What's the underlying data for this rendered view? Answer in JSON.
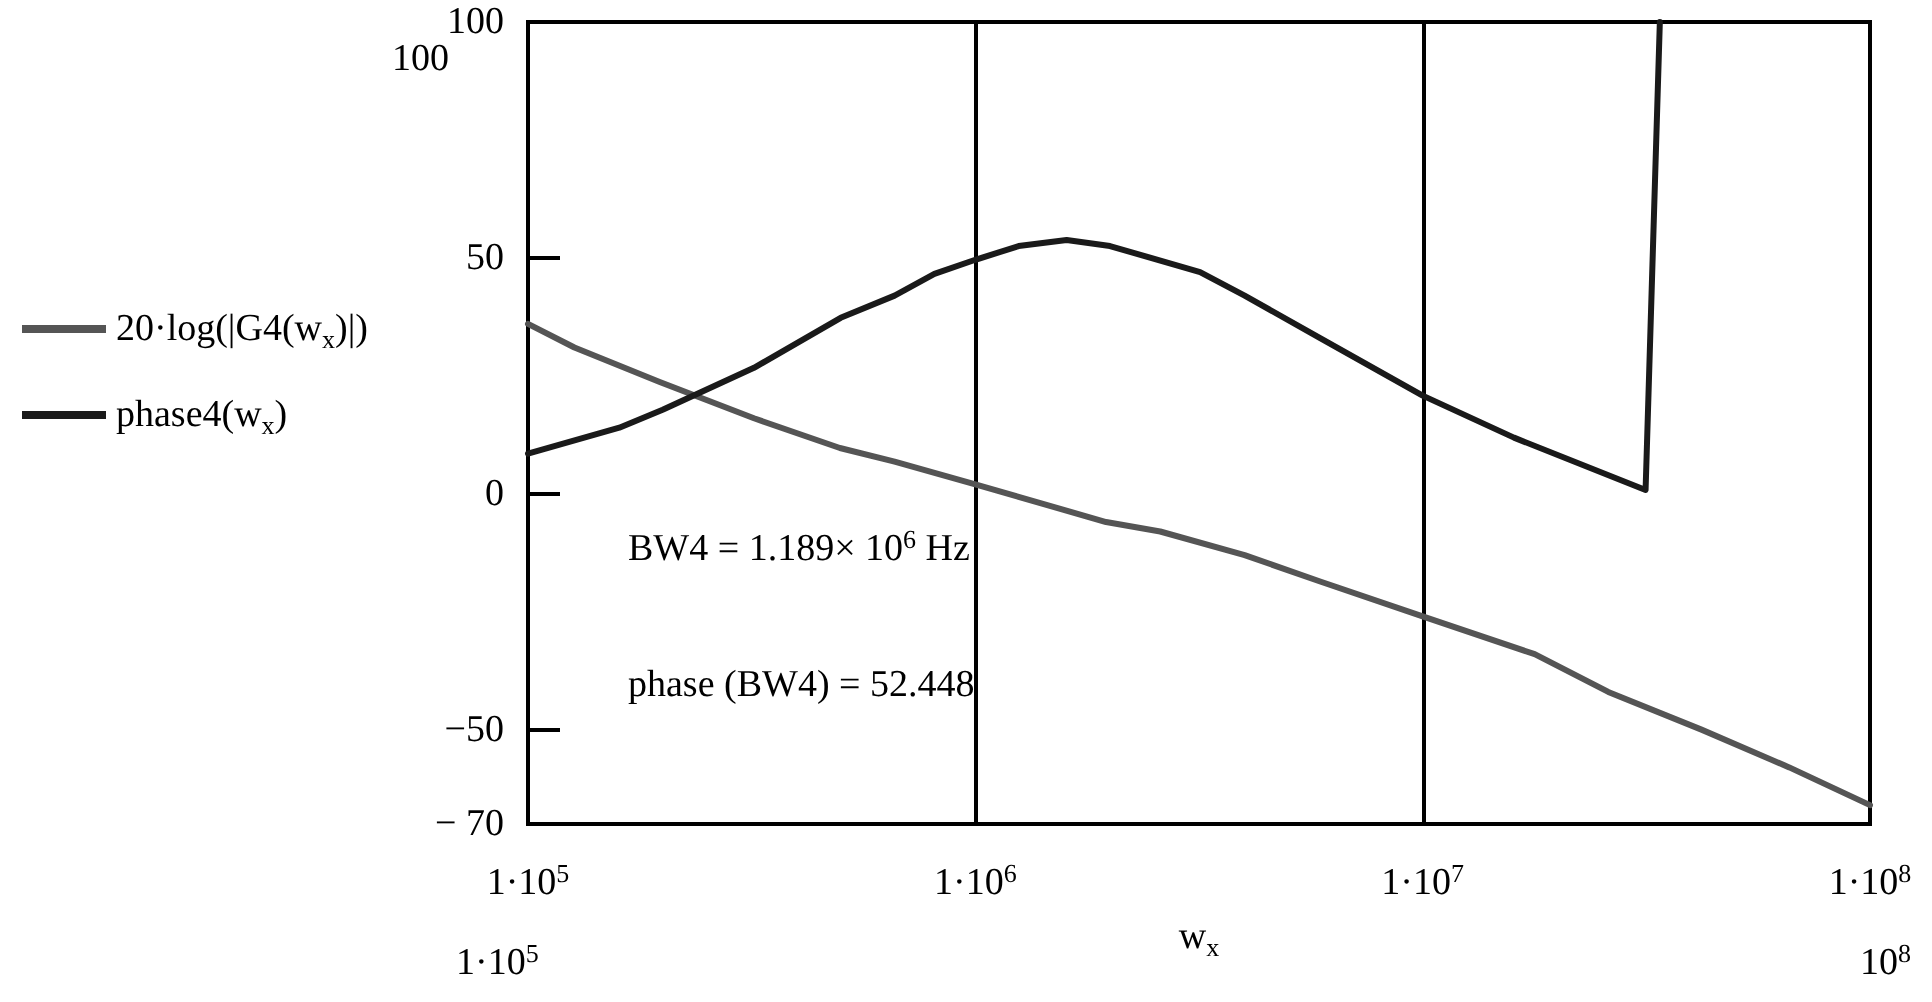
{
  "chart_data": {
    "type": "line",
    "xlabel": "w$_{x}$",
    "log": "x",
    "grid": "x",
    "legend": "left",
    "marker": "none",
    "line_style": "solid",
    "xlim": [
      100000,
      100000000
    ],
    "xticks": [
      {
        "value": 100000,
        "label": "1·10$^{5}$"
      },
      {
        "value": 1000000,
        "label": "1·10$^{6}$"
      },
      {
        "value": 10000000,
        "label": "1·10$^{7}$"
      },
      {
        "value": 100000000,
        "label": "1·10$^{8}$"
      }
    ],
    "ylim": [
      -70,
      100
    ],
    "yticks": [
      {
        "value": -70,
        "label": "− 70"
      },
      {
        "value": -50,
        "label": "−50"
      },
      0,
      50,
      100
    ],
    "series": [
      {
        "name": "20·log(|G4(w$_{x}$)|)",
        "color": "#555555",
        "x": [
          100000,
          127000,
          197000,
          320000,
          498000,
          660000,
          1000000,
          1960000,
          2590000,
          4000000,
          5900000,
          10000000,
          17800000,
          26000000,
          42000000,
          66000000,
          100000000
        ],
        "values": [
          36,
          31,
          23.7,
          16,
          9.7,
          6.8,
          2,
          -6,
          -8,
          -13,
          -18.6,
          -26,
          -34,
          -42,
          -50,
          -58,
          -66
        ]
      },
      {
        "name": "phase4(w$_{x}$)",
        "color": "#1a1a1a",
        "x": [
          100000,
          160000,
          200000,
          320000,
          500000,
          660000,
          810000,
          1000000,
          1250000,
          1600000,
          2000000,
          3180000,
          4000000,
          5900000,
          10000000,
          16000000,
          31500000,
          33900000
        ],
        "values": [
          8.5,
          14,
          17.8,
          26.7,
          37.3,
          42,
          46.6,
          49.6,
          52.5,
          53.8,
          52.5,
          47,
          42,
          33,
          20.8,
          11.9,
          0.8,
          100
        ]
      }
    ],
    "annotations": [
      "BW4 = 1.189× 10$^{6}$ Hz",
      "phase (BW4) = 52.448",
      "100",
      "1·10$^{5}$",
      "10$^{8}$"
    ]
  }
}
